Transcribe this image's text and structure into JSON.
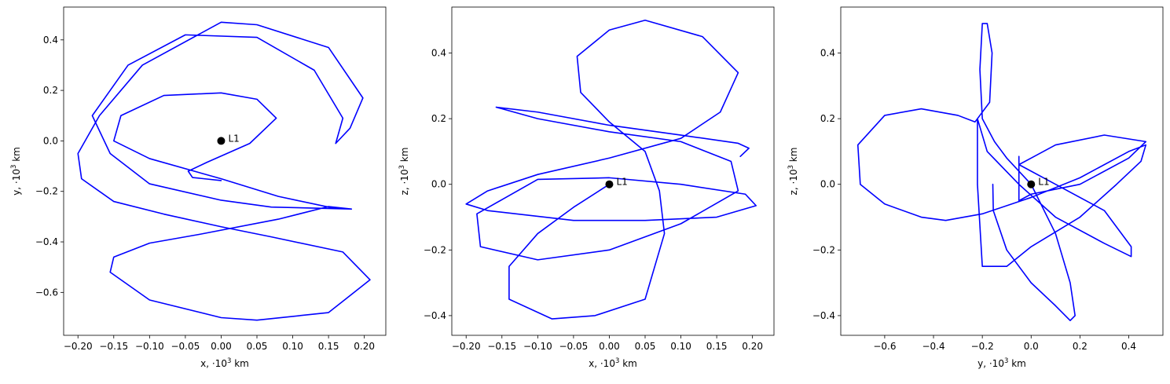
{
  "chart_data": [
    {
      "type": "line",
      "panel": "x-y",
      "xlabel": "x, ·10³ km",
      "ylabel": "y, ·10³ km",
      "xlim": [
        -0.22,
        0.23
      ],
      "ylim": [
        -0.77,
        0.53
      ],
      "xticks": [
        -0.2,
        -0.15,
        -0.1,
        -0.05,
        0.0,
        0.05,
        0.1,
        0.15,
        0.2
      ],
      "xtick_labels": [
        "−0.20",
        "−0.15",
        "−0.10",
        "−0.05",
        "0.00",
        "0.05",
        "0.10",
        "0.15",
        "0.20"
      ],
      "yticks": [
        0.4,
        0.2,
        0.0,
        -0.2,
        -0.4,
        -0.6
      ],
      "ytick_labels": [
        "0.4",
        "0.2",
        "0.0",
        "−0.2",
        "−0.4",
        "−0.6"
      ],
      "grid": false,
      "series": [
        {
          "color": "#0000ff",
          "points": [
            [
              0.0,
              -0.157
            ],
            [
              -0.04,
              -0.145
            ],
            [
              -0.046,
              -0.12
            ],
            [
              -0.02,
              -0.085
            ],
            [
              0.04,
              -0.01
            ],
            [
              0.077,
              0.09
            ],
            [
              0.05,
              0.165
            ],
            [
              0.0,
              0.19
            ],
            [
              -0.08,
              0.18
            ],
            [
              -0.14,
              0.1
            ],
            [
              -0.15,
              0.0
            ],
            [
              -0.1,
              -0.07
            ],
            [
              0.0,
              -0.15
            ],
            [
              0.08,
              -0.22
            ],
            [
              0.15,
              -0.262
            ],
            [
              0.182,
              -0.27
            ],
            [
              0.15,
              -0.26
            ],
            [
              0.08,
              -0.31
            ],
            [
              -0.03,
              -0.37
            ],
            [
              -0.1,
              -0.405
            ],
            [
              -0.15,
              -0.46
            ],
            [
              -0.155,
              -0.52
            ],
            [
              -0.1,
              -0.63
            ],
            [
              0.0,
              -0.7
            ],
            [
              0.05,
              -0.71
            ],
            [
              0.15,
              -0.68
            ],
            [
              0.208,
              -0.55
            ],
            [
              0.17,
              -0.44
            ],
            [
              0.07,
              -0.38
            ],
            [
              0.0,
              -0.34
            ],
            [
              -0.08,
              -0.29
            ],
            [
              -0.15,
              -0.24
            ],
            [
              -0.195,
              -0.15
            ],
            [
              -0.2,
              -0.05
            ],
            [
              -0.17,
              0.1
            ],
            [
              -0.11,
              0.3
            ],
            [
              0.0,
              0.47
            ],
            [
              0.05,
              0.46
            ],
            [
              0.15,
              0.37
            ],
            [
              0.198,
              0.17
            ],
            [
              0.18,
              0.05
            ],
            [
              0.16,
              -0.01
            ],
            [
              0.17,
              0.09
            ],
            [
              0.13,
              0.28
            ],
            [
              0.05,
              0.41
            ],
            [
              -0.05,
              0.42
            ],
            [
              -0.13,
              0.3
            ],
            [
              -0.18,
              0.1
            ],
            [
              -0.155,
              -0.05
            ],
            [
              -0.1,
              -0.17
            ],
            [
              0.0,
              -0.235
            ],
            [
              0.07,
              -0.262
            ],
            [
              0.182,
              -0.27
            ]
          ]
        }
      ],
      "marker": {
        "x": 0.0,
        "y": 0.0,
        "label": "L1"
      }
    },
    {
      "type": "line",
      "panel": "x-z",
      "xlabel": "x, ·10³ km",
      "ylabel": "z, ·10³ km",
      "xlim": [
        -0.22,
        0.23
      ],
      "ylim": [
        -0.46,
        0.54
      ],
      "xticks": [
        -0.2,
        -0.15,
        -0.1,
        -0.05,
        0.0,
        0.05,
        0.1,
        0.15,
        0.2
      ],
      "xtick_labels": [
        "−0.20",
        "−0.15",
        "−0.10",
        "−0.05",
        "0.00",
        "0.05",
        "0.10",
        "0.15",
        "0.20"
      ],
      "yticks": [
        0.4,
        0.2,
        0.0,
        -0.2,
        -0.4
      ],
      "ytick_labels": [
        "0.4",
        "0.2",
        "0.0",
        "−0.2",
        "−0.4"
      ],
      "grid": false,
      "series": [
        {
          "color": "#0000ff",
          "points": [
            [
              0.0,
              0.0
            ],
            [
              -0.05,
              -0.07
            ],
            [
              -0.1,
              -0.15
            ],
            [
              -0.14,
              -0.25
            ],
            [
              -0.14,
              -0.35
            ],
            [
              -0.08,
              -0.41
            ],
            [
              -0.02,
              -0.4
            ],
            [
              0.05,
              -0.35
            ],
            [
              0.077,
              -0.15
            ],
            [
              0.07,
              -0.02
            ],
            [
              0.05,
              0.1
            ],
            [
              0.0,
              0.19
            ],
            [
              -0.04,
              0.28
            ],
            [
              -0.045,
              0.39
            ],
            [
              0.0,
              0.47
            ],
            [
              0.05,
              0.5
            ],
            [
              0.13,
              0.45
            ],
            [
              0.18,
              0.34
            ],
            [
              0.155,
              0.22
            ],
            [
              0.1,
              0.14
            ],
            [
              0.0,
              0.08
            ],
            [
              -0.1,
              0.03
            ],
            [
              -0.17,
              -0.02
            ],
            [
              -0.2,
              -0.06
            ],
            [
              -0.17,
              -0.08
            ],
            [
              -0.05,
              -0.11
            ],
            [
              0.05,
              -0.11
            ],
            [
              0.15,
              -0.1
            ],
            [
              0.205,
              -0.065
            ],
            [
              0.19,
              -0.03
            ],
            [
              0.1,
              0.0
            ],
            [
              0.0,
              0.02
            ],
            [
              -0.1,
              0.015
            ],
            [
              -0.185,
              -0.09
            ],
            [
              -0.18,
              -0.19
            ],
            [
              -0.1,
              -0.23
            ],
            [
              0.0,
              -0.2
            ],
            [
              0.1,
              -0.12
            ],
            [
              0.18,
              -0.02
            ],
            [
              0.17,
              0.07
            ],
            [
              0.1,
              0.13
            ],
            [
              0.0,
              0.16
            ],
            [
              -0.1,
              0.2
            ],
            [
              -0.158,
              0.235
            ],
            [
              -0.1,
              0.22
            ],
            [
              0.0,
              0.18
            ],
            [
              0.1,
              0.15
            ],
            [
              0.18,
              0.125
            ],
            [
              0.195,
              0.11
            ],
            [
              0.183,
              0.085
            ]
          ]
        }
      ],
      "marker": {
        "x": 0.0,
        "y": 0.0,
        "label": "L1"
      }
    },
    {
      "type": "line",
      "panel": "y-z",
      "xlabel": "y, ·10³ km",
      "ylabel": "z, ·10³ km",
      "xlim": [
        -0.78,
        0.54
      ],
      "ylim": [
        -0.46,
        0.54
      ],
      "xticks": [
        -0.6,
        -0.4,
        -0.2,
        0.0,
        0.2,
        0.4
      ],
      "xtick_labels": [
        "−0.6",
        "−0.4",
        "−0.2",
        "0.0",
        "0.2",
        "0.4"
      ],
      "yticks": [
        0.4,
        0.2,
        0.0,
        -0.2,
        -0.4
      ],
      "ytick_labels": [
        "0.4",
        "0.2",
        "0.0",
        "−0.2",
        "−0.4"
      ],
      "grid": false,
      "series": [
        {
          "color": "#0000ff",
          "points": [
            [
              -0.157,
              0.0
            ],
            [
              -0.155,
              -0.08
            ],
            [
              -0.1,
              -0.2
            ],
            [
              0.0,
              -0.3
            ],
            [
              0.1,
              -0.37
            ],
            [
              0.16,
              -0.415
            ],
            [
              0.18,
              -0.4
            ],
            [
              0.16,
              -0.3
            ],
            [
              0.1,
              -0.15
            ],
            [
              0.0,
              0.0
            ],
            [
              -0.1,
              0.08
            ],
            [
              -0.15,
              0.13
            ],
            [
              -0.2,
              0.2
            ],
            [
              -0.21,
              0.35
            ],
            [
              -0.2,
              0.49
            ],
            [
              -0.18,
              0.49
            ],
            [
              -0.16,
              0.4
            ],
            [
              -0.17,
              0.25
            ],
            [
              -0.23,
              0.19
            ],
            [
              -0.3,
              0.21
            ],
            [
              -0.45,
              0.23
            ],
            [
              -0.6,
              0.21
            ],
            [
              -0.71,
              0.12
            ],
            [
              -0.7,
              0.0
            ],
            [
              -0.6,
              -0.06
            ],
            [
              -0.45,
              -0.1
            ],
            [
              -0.35,
              -0.11
            ],
            [
              -0.2,
              -0.09
            ],
            [
              0.0,
              -0.04
            ],
            [
              0.2,
              0.02
            ],
            [
              0.4,
              0.1
            ],
            [
              0.47,
              0.12
            ],
            [
              0.45,
              0.07
            ],
            [
              0.35,
              0.0
            ],
            [
              0.2,
              -0.1
            ],
            [
              0.0,
              -0.19
            ],
            [
              -0.1,
              -0.25
            ],
            [
              -0.2,
              -0.25
            ],
            [
              -0.22,
              0.0
            ],
            [
              -0.22,
              0.2
            ],
            [
              -0.18,
              0.1
            ],
            [
              -0.05,
              0.0
            ],
            [
              0.1,
              -0.1
            ],
            [
              0.3,
              -0.18
            ],
            [
              0.41,
              -0.22
            ],
            [
              0.41,
              -0.19
            ],
            [
              0.3,
              -0.08
            ],
            [
              0.1,
              0.0
            ],
            [
              -0.05,
              0.06
            ],
            [
              0.0,
              0.08
            ],
            [
              0.1,
              0.12
            ],
            [
              0.3,
              0.15
            ],
            [
              0.47,
              0.13
            ],
            [
              0.4,
              0.08
            ],
            [
              0.2,
              0.0
            ],
            [
              0.0,
              -0.03
            ],
            [
              -0.05,
              -0.05
            ],
            [
              -0.05,
              0.085
            ]
          ]
        }
      ],
      "marker": {
        "x": 0.0,
        "y": 0.0,
        "label": "L1"
      }
    }
  ]
}
